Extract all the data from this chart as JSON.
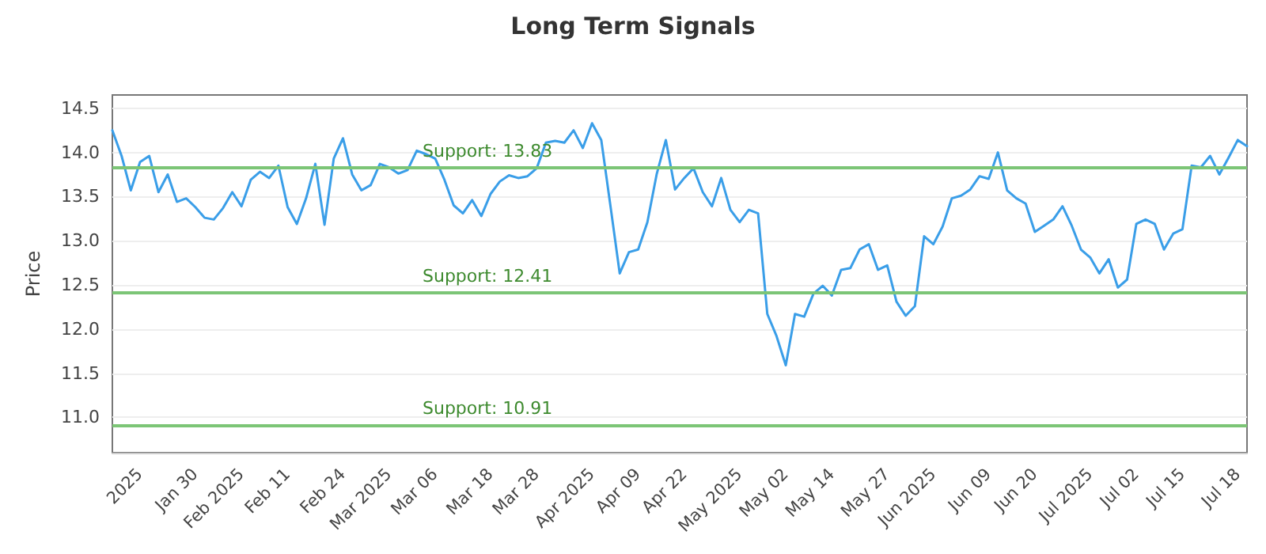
{
  "chart_data": {
    "type": "line",
    "title": "Long Term Signals",
    "ylabel": "Price",
    "categories": [
      null,
      null,
      null,
      "2025",
      null,
      null,
      null,
      null,
      null,
      "Jan 30",
      null,
      null,
      null,
      null,
      "Feb 2025",
      null,
      null,
      null,
      null,
      "Feb 11",
      null,
      null,
      null,
      null,
      null,
      "Feb 24",
      null,
      null,
      null,
      null,
      "Mar 2025",
      null,
      null,
      null,
      null,
      "Mar 06",
      null,
      null,
      null,
      null,
      null,
      "Mar 18",
      null,
      null,
      null,
      null,
      "Mar 28",
      null,
      null,
      null,
      null,
      null,
      "Apr 2025",
      null,
      null,
      null,
      null,
      "Apr 09",
      null,
      null,
      null,
      null,
      "Apr 22",
      null,
      null,
      null,
      null,
      null,
      "May 2025",
      null,
      null,
      null,
      null,
      "May 02",
      null,
      null,
      null,
      null,
      "May 14",
      null,
      null,
      null,
      null,
      null,
      "May 27",
      null,
      null,
      null,
      null,
      "Jun 2025",
      null,
      null,
      null,
      null,
      null,
      "Jun 09",
      null,
      null,
      null,
      null,
      "Jun 20",
      null,
      null,
      null,
      null,
      null,
      "Jul 2025",
      null,
      null,
      null,
      null,
      "Jul 02",
      null,
      null,
      null,
      null,
      "Jul 15",
      null,
      null,
      null,
      null,
      null,
      "Jul 18",
      null
    ],
    "series": [
      {
        "color": "#3a9ee8",
        "values": [
          14.25,
          13.96,
          13.57,
          13.89,
          13.96,
          13.55,
          13.75,
          13.44,
          13.48,
          13.38,
          13.26,
          13.24,
          13.37,
          13.55,
          13.39,
          13.69,
          13.78,
          13.71,
          13.85,
          13.38,
          13.19,
          13.48,
          13.87,
          13.18,
          13.93,
          14.16,
          13.75,
          13.57,
          13.63,
          13.87,
          13.83,
          13.76,
          13.8,
          14.02,
          13.98,
          13.93,
          13.69,
          13.4,
          13.31,
          13.46,
          13.28,
          13.53,
          13.67,
          13.74,
          13.71,
          13.73,
          13.82,
          14.11,
          14.13,
          14.11,
          14.25,
          14.05,
          14.33,
          14.14,
          13.39,
          12.63,
          12.87,
          12.9,
          13.21,
          13.75,
          14.14,
          13.58,
          13.71,
          13.82,
          13.55,
          13.39,
          13.71,
          13.35,
          13.21,
          13.35,
          13.31,
          12.17,
          11.92,
          11.59,
          12.17,
          12.14,
          12.4,
          12.49,
          12.38,
          12.67,
          12.69,
          12.9,
          12.96,
          12.67,
          12.72,
          12.31,
          12.15,
          12.26,
          13.05,
          12.96,
          13.16,
          13.48,
          13.51,
          13.58,
          13.73,
          13.7,
          14.0,
          13.57,
          13.48,
          13.42,
          13.1,
          13.17,
          13.24,
          13.39,
          13.17,
          12.9,
          12.81,
          12.63,
          12.79,
          12.47,
          12.56,
          13.19,
          13.24,
          13.19,
          12.9,
          13.08,
          13.13,
          13.85,
          13.83,
          13.96,
          13.75,
          13.94,
          14.14,
          14.07
        ]
      }
    ],
    "ylim": [
      10.6,
      14.65
    ],
    "yticks": [
      {
        "value": 11,
        "label": "11.0"
      },
      11.5,
      {
        "value": 12,
        "label": "12.0"
      },
      12.5,
      {
        "value": 13,
        "label": "13.0"
      },
      13.5,
      {
        "value": 14,
        "label": "14.0"
      },
      14.5
    ],
    "grid": "y",
    "marker": "none",
    "line_style": "solid",
    "ref_lines": [
      {
        "axis": "y",
        "value": 13.83,
        "label": "Support: 13.83",
        "color": "#7cc576"
      },
      {
        "axis": "y",
        "value": 12.41,
        "label": "Support: 12.41",
        "color": "#7cc576"
      },
      {
        "axis": "y",
        "value": 10.91,
        "label": "Support: 10.91",
        "color": "#7cc576"
      }
    ]
  }
}
